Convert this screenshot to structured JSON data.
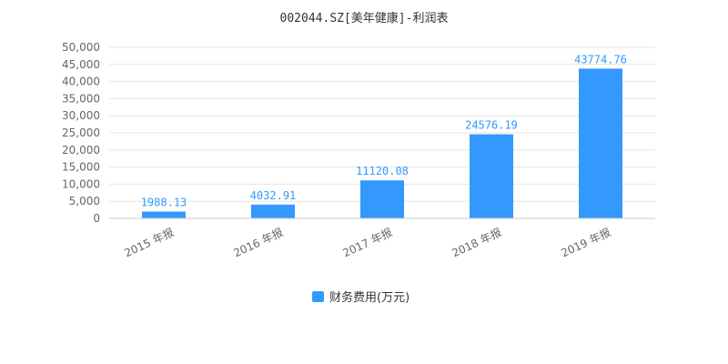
{
  "chart_data": {
    "type": "bar",
    "title": "002044.SZ[美年健康]-利润表",
    "xlabel": "",
    "ylabel": "",
    "categories": [
      "2015 年报",
      "2016 年报",
      "2017 年报",
      "2018 年报",
      "2019 年报"
    ],
    "series": [
      {
        "name": "财务费用(万元)",
        "values": [
          1988.13,
          4032.91,
          11120.08,
          24576.19,
          43774.76
        ],
        "value_labels": [
          "1988.13",
          "4032.91",
          "11120.08",
          "24576.19",
          "43774.76"
        ]
      }
    ],
    "ylim": [
      0,
      50000
    ],
    "yticks": [
      0,
      5000,
      10000,
      15000,
      20000,
      25000,
      30000,
      35000,
      40000,
      45000,
      50000
    ],
    "ytick_labels": [
      "0",
      "5,000",
      "10,000",
      "15,000",
      "20,000",
      "25,000",
      "30,000",
      "35,000",
      "40,000",
      "45,000",
      "50,000"
    ],
    "grid": true,
    "legend": "bottom-center",
    "colors": {
      "bar": "#3399ff",
      "data_label": "#3399ff",
      "grid": "#e6e6e6",
      "axis": "#cccccc"
    }
  }
}
